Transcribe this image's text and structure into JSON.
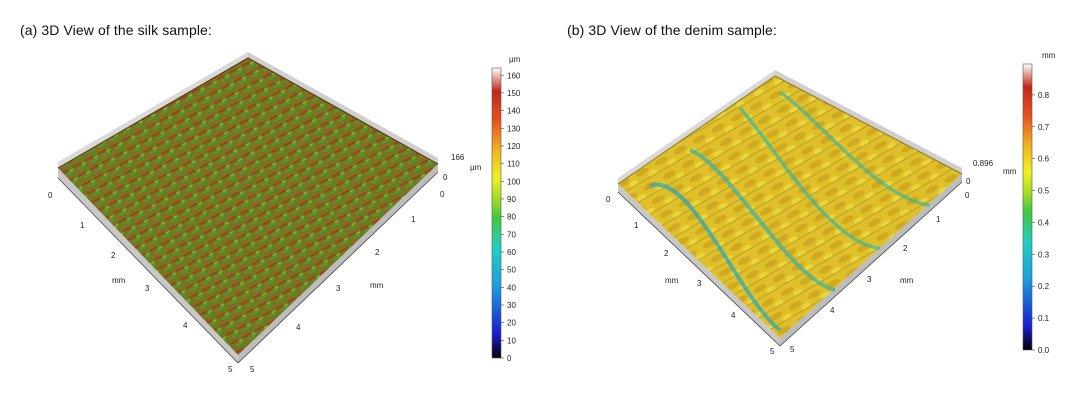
{
  "panels": [
    {
      "id": "a",
      "title": "(a)  3D View of the silk sample:",
      "colorbar": {
        "unit": "µm",
        "ticks": [
          "0",
          "10",
          "20",
          "30",
          "40",
          "50",
          "60",
          "70",
          "80",
          "90",
          "100",
          "110",
          "120",
          "130",
          "140",
          "150",
          "160"
        ]
      },
      "z_axis": {
        "max_label": "166",
        "zero_label": "0",
        "unit": "µm"
      },
      "x_axis": {
        "ticks": [
          "0",
          "1",
          "2",
          "3",
          "4",
          "5"
        ],
        "unit": "mm"
      },
      "y_axis": {
        "ticks": [
          "0",
          "1",
          "2",
          "3",
          "4",
          "5"
        ],
        "unit": "mm"
      },
      "surface_colors": [
        "#6b7a1e",
        "#8a3a18",
        "#5a9a2a",
        "#b04a20",
        "#4f8f3a"
      ]
    },
    {
      "id": "b",
      "title": "(b)  3D View of the denim sample:",
      "colorbar": {
        "unit": "mm",
        "ticks": [
          "0.0",
          "0.1",
          "0.2",
          "0.3",
          "0.4",
          "0.5",
          "0.6",
          "0.7",
          "0.8"
        ]
      },
      "z_axis": {
        "max_label": "0.896",
        "zero_label": "0",
        "unit": "mm"
      },
      "x_axis": {
        "ticks": [
          "0",
          "1",
          "2",
          "3",
          "4",
          "5"
        ],
        "unit": "mm"
      },
      "y_axis": {
        "ticks": [
          "0",
          "1",
          "2",
          "3",
          "4",
          "5"
        ],
        "unit": "mm"
      },
      "surface_colors": [
        "#e3c52e",
        "#d8b21f",
        "#c4cf2a",
        "#3fbfa8",
        "#2aa0c8"
      ]
    }
  ]
}
